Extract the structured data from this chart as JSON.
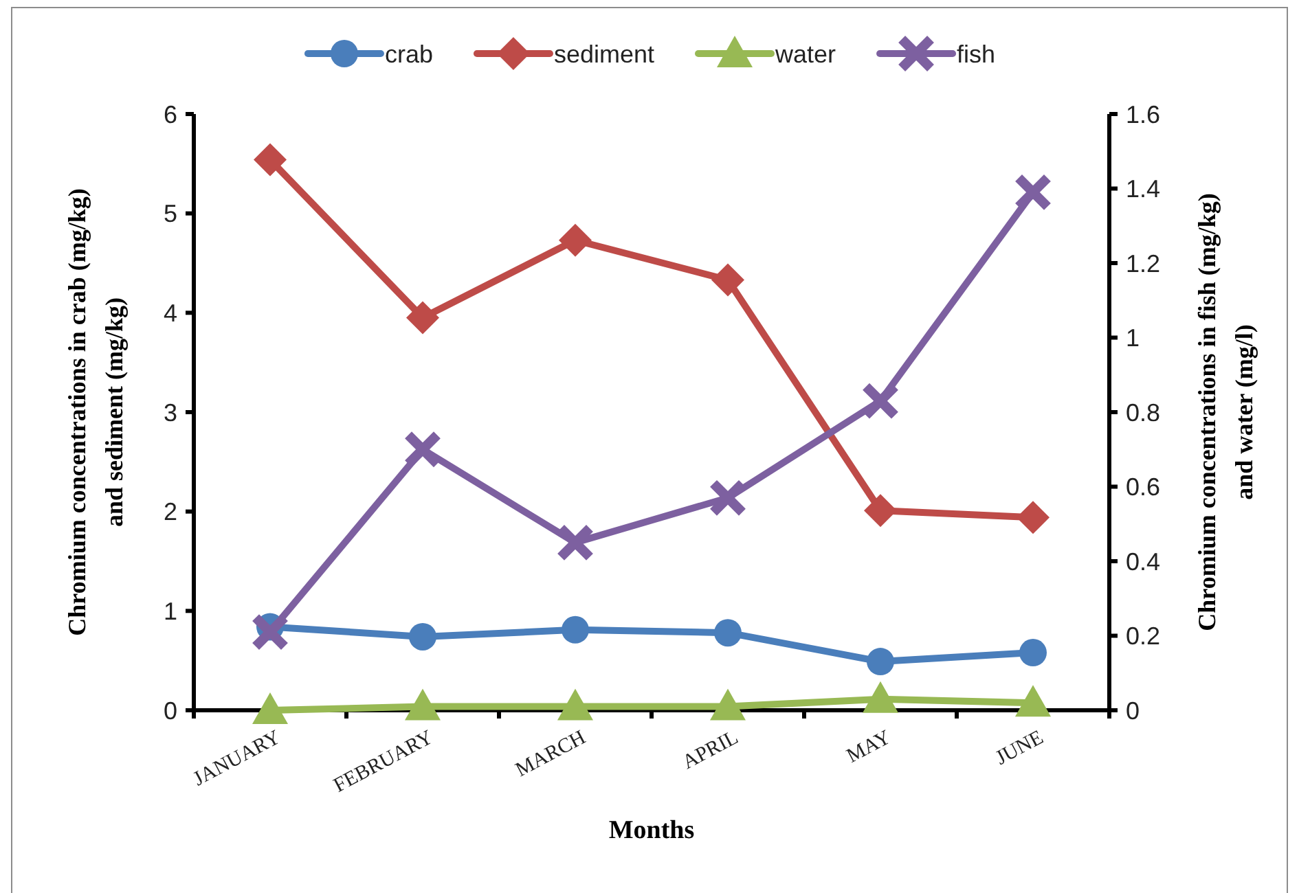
{
  "chart_data": {
    "type": "line",
    "xlabel": "Months",
    "ylabel": "Chromium  concentrations in  crab (mg/kg)\nand sediment (mg/kg)",
    "y2label": "Chromium  concentrations in fish (mg/kg)\nand water (mg/l)",
    "categories": [
      "JANUARY",
      "FEBRUARY",
      "MARCH",
      "APRIL",
      "MAY",
      "JUNE"
    ],
    "series": [
      {
        "name": "crab",
        "color": "#4a7ebb",
        "marker": "circle",
        "values": [
          0.84,
          0.74,
          0.81,
          0.78,
          0.49,
          0.58
        ]
      },
      {
        "name": "sediment",
        "color": "#be4b48",
        "marker": "diamond",
        "values": [
          5.54,
          3.95,
          4.73,
          4.33,
          2.01,
          1.94
        ]
      },
      {
        "name": "water",
        "color": "#98b954",
        "marker": "triangle",
        "axis": "y2",
        "values": [
          0.0,
          0.01,
          0.01,
          0.01,
          0.03,
          0.02
        ]
      },
      {
        "name": "fish",
        "color": "#7d60a0",
        "marker": "cross",
        "axis": "y2",
        "values": [
          0.21,
          0.7,
          0.45,
          0.57,
          0.83,
          1.39
        ]
      }
    ],
    "ylim": [
      0,
      6
    ],
    "yticks": [
      0,
      1,
      2,
      3,
      4,
      5,
      6
    ],
    "y2lim": [
      0,
      1.6
    ],
    "y2ticks": [
      0,
      0.2,
      0.4,
      0.6,
      0.8,
      1,
      1.2,
      1.4,
      1.6
    ],
    "legend": "top"
  }
}
